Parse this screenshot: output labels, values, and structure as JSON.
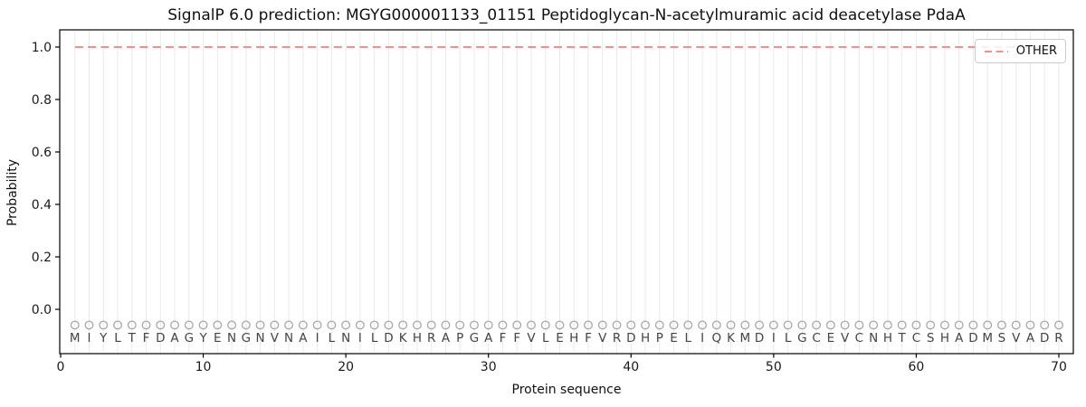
{
  "chart_data": {
    "type": "line",
    "title": "SignalP 6.0 prediction: MGYG000001133_01151 Peptidoglycan-N-acetylmuramic acid deacetylase PdaA",
    "xlabel": "Protein sequence",
    "ylabel": "Probability",
    "x_ticks": [
      0,
      10,
      20,
      30,
      40,
      50,
      60,
      70
    ],
    "y_ticks": [
      0.0,
      0.2,
      0.4,
      0.6,
      0.8,
      1.0
    ],
    "y_tick_labels": [
      "0.0",
      "0.2",
      "0.4",
      "0.6",
      "0.8",
      "1.0"
    ],
    "xlim": [
      -0.1,
      71.1
    ],
    "ylim": [
      -0.17,
      1.07
    ],
    "grid": "vertical line at every residue position, no horizontal gridlines",
    "sequence": "MIYLTFDAGYENGNVNAILNILDKHRAPGAFFVLEHFVRDHPELIQKMDILGCEVCNHTCSHADMSVADR",
    "series": [
      {
        "name": "OTHER",
        "linestyle": "dashed",
        "color": "#f08080",
        "x_start": 1,
        "x_step": 1,
        "values": [
          1.0,
          1.0,
          1.0,
          1.0,
          1.0,
          1.0,
          1.0,
          1.0,
          1.0,
          1.0,
          1.0,
          1.0,
          1.0,
          1.0,
          1.0,
          1.0,
          1.0,
          1.0,
          1.0,
          1.0,
          1.0,
          1.0,
          1.0,
          1.0,
          1.0,
          1.0,
          1.0,
          1.0,
          1.0,
          1.0,
          1.0,
          1.0,
          1.0,
          1.0,
          1.0,
          1.0,
          1.0,
          1.0,
          1.0,
          1.0,
          1.0,
          1.0,
          1.0,
          1.0,
          1.0,
          1.0,
          1.0,
          1.0,
          1.0,
          1.0,
          1.0,
          1.0,
          1.0,
          1.0,
          1.0,
          1.0,
          1.0,
          1.0,
          1.0,
          1.0,
          1.0,
          1.0,
          1.0,
          1.0,
          1.0,
          1.0,
          1.0,
          1.0,
          1.0,
          1.0
        ]
      }
    ],
    "residue_markers": {
      "shape": "open-circle",
      "y": -0.06,
      "color": "#a8a8a8"
    },
    "legend": {
      "position": "upper right",
      "entries": [
        {
          "label": "OTHER",
          "linestyle": "dashed",
          "color": "#f08080"
        }
      ]
    }
  },
  "colors": {
    "other_line": "#f08080",
    "grid": "#eaeaea",
    "frame": "#000000",
    "tick_text": "#1a1a1a",
    "letters": "#444444",
    "marker_stroke": "#a8a8a8",
    "legend_border": "#cccccc"
  }
}
